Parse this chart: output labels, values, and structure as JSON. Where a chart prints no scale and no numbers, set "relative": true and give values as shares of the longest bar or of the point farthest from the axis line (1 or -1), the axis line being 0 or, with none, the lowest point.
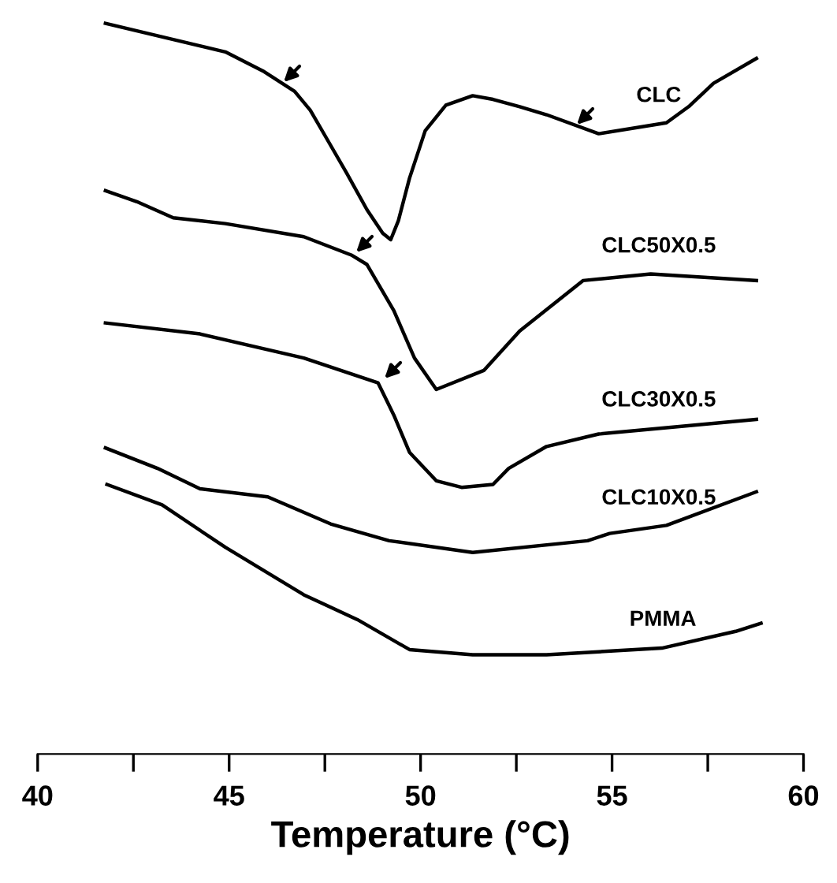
{
  "chart_data": {
    "type": "line",
    "relative": true,
    "xlabel": "Temperature (°C)",
    "xlim": [
      40,
      60
    ],
    "xticks": [
      40,
      {
        "value": 42.5,
        "label": null
      },
      45,
      {
        "value": 47.5,
        "label": null
      },
      50,
      {
        "value": 52.5,
        "label": null
      },
      55,
      {
        "value": 57.5,
        "label": null
      },
      60
    ],
    "tick_labels": "x",
    "grid": false,
    "marker": "none",
    "line_style": "solid",
    "series": [
      {
        "name": "CLC",
        "color": "#000000",
        "x": [
          41.77,
          43.54,
          44.9,
          45.88,
          46.71,
          47.12,
          47.53,
          48.07,
          48.6,
          49.01,
          49.22,
          49.42,
          49.71,
          50.12,
          50.66,
          51.36,
          51.89,
          52.59,
          53.29,
          54.65,
          56.42,
          57.0,
          57.65,
          58.77
        ],
        "values": [
          1.0,
          0.978,
          0.961,
          0.935,
          0.907,
          0.881,
          0.844,
          0.795,
          0.745,
          0.713,
          0.704,
          0.73,
          0.788,
          0.853,
          0.888,
          0.901,
          0.896,
          0.886,
          0.875,
          0.849,
          0.864,
          0.886,
          0.918,
          0.952
        ]
      },
      {
        "name": "CLC50X0.5",
        "color": "#000000",
        "x": [
          41.77,
          42.59,
          43.54,
          44.9,
          46.95,
          48.19,
          48.6,
          49.3,
          49.84,
          50.41,
          51.65,
          52.59,
          54.24,
          56.01,
          58.77
        ],
        "values": [
          0.771,
          0.756,
          0.734,
          0.726,
          0.708,
          0.683,
          0.67,
          0.607,
          0.542,
          0.499,
          0.525,
          0.579,
          0.648,
          0.657,
          0.648
        ]
      },
      {
        "name": "CLC30X0.5",
        "color": "#000000",
        "x": [
          41.77,
          44.24,
          46.95,
          48.89,
          49.3,
          49.71,
          50.41,
          51.07,
          51.89,
          52.3,
          53.29,
          54.65,
          58.77
        ],
        "values": [
          0.59,
          0.575,
          0.542,
          0.508,
          0.464,
          0.413,
          0.374,
          0.365,
          0.369,
          0.391,
          0.421,
          0.438,
          0.458
        ]
      },
      {
        "name": "CLC10X0.5",
        "color": "#000000",
        "x": [
          41.77,
          43.13,
          44.24,
          46.01,
          47.65,
          49.18,
          51.36,
          54.36,
          54.94,
          56.42,
          58.77
        ],
        "values": [
          0.419,
          0.391,
          0.363,
          0.352,
          0.315,
          0.292,
          0.276,
          0.292,
          0.302,
          0.313,
          0.359
        ]
      },
      {
        "name": "PMMA",
        "color": "#000000",
        "x": [
          41.81,
          43.25,
          44.9,
          46.95,
          48.35,
          49.71,
          51.36,
          53.29,
          56.3,
          58.23,
          58.89
        ],
        "values": [
          0.369,
          0.341,
          0.283,
          0.218,
          0.184,
          0.143,
          0.136,
          0.136,
          0.145,
          0.168,
          0.179
        ]
      }
    ]
  }
}
